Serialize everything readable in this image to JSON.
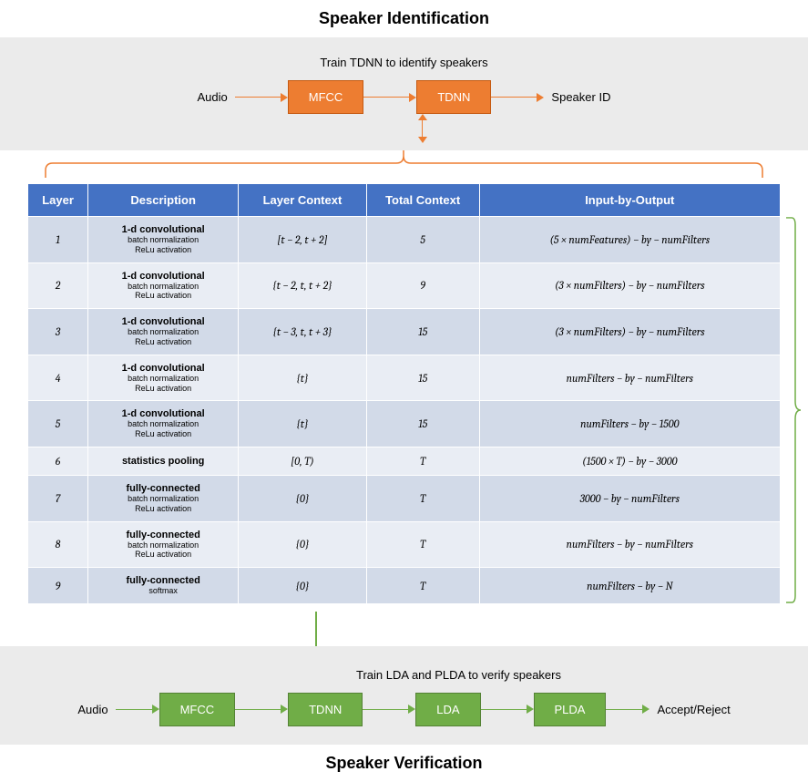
{
  "identification": {
    "title": "Speaker Identification",
    "subtitle": "Train TDNN to identify speakers",
    "input": "Audio",
    "output": "Speaker ID",
    "blocks": [
      "MFCC",
      "TDNN"
    ],
    "block_bg": "#ed7d31",
    "block_border": "#c55a11",
    "arrow_color": "#ed7d31"
  },
  "table": {
    "header_bg": "#4472c4",
    "row_odd_bg": "#d2dae8",
    "row_even_bg": "#e9edf4",
    "columns": [
      "Layer",
      "Description",
      "Layer Context",
      "Total Context",
      "Input-by-Output"
    ],
    "rows": [
      {
        "layer": "1",
        "desc_main": "1-d convolutional",
        "desc_sub": "batch normalization\nReLu activation",
        "ctx": "[t − 2, t + 2]",
        "total": "5",
        "io": "(5 × numFeatures) − by − numFilters"
      },
      {
        "layer": "2",
        "desc_main": "1-d convolutional",
        "desc_sub": "batch normalization\nReLu activation",
        "ctx": "{t − 2, t, t + 2}",
        "total": "9",
        "io": "(3 × numFilters) − by − numFilters"
      },
      {
        "layer": "3",
        "desc_main": "1-d convolutional",
        "desc_sub": "batch normalization\nReLu activation",
        "ctx": "{t − 3, t, t + 3}",
        "total": "15",
        "io": "(3 × numFilters) − by − numFilters"
      },
      {
        "layer": "4",
        "desc_main": "1-d convolutional",
        "desc_sub": "batch normalization\nReLu activation",
        "ctx": "{t}",
        "total": "15",
        "io": "numFilters − by − numFilters"
      },
      {
        "layer": "5",
        "desc_main": "1-d convolutional",
        "desc_sub": "batch normalization\nReLu activation",
        "ctx": "{t}",
        "total": "15",
        "io": "numFilters − by − 1500"
      },
      {
        "layer": "6",
        "desc_main": "statistics pooling",
        "desc_sub": "",
        "ctx": "[0, T)",
        "total": "T",
        "io": "(1500 × T) − by − 3000"
      },
      {
        "layer": "7",
        "desc_main": "fully-connected",
        "desc_sub": "batch normalization\nReLu activation",
        "ctx": "{0}",
        "total": "T",
        "io": "3000 − by − numFilters"
      },
      {
        "layer": "8",
        "desc_main": "fully-connected",
        "desc_sub": "batch normalization\nReLu activation",
        "ctx": "{0}",
        "total": "T",
        "io": "numFilters − by − numFilters"
      },
      {
        "layer": "9",
        "desc_main": "fully-connected",
        "desc_sub": "softmax",
        "ctx": "{0}",
        "total": "T",
        "io": "numFilters − by − N"
      }
    ],
    "bracket_color": "#70ad47"
  },
  "verification": {
    "title": "Speaker Verification",
    "subtitle": "Train LDA and PLDA to verify speakers",
    "input": "Audio",
    "output": "Accept/Reject",
    "blocks": [
      "MFCC",
      "TDNN",
      "LDA",
      "PLDA"
    ],
    "block_bg": "#70ad47",
    "block_border": "#548235",
    "arrow_color": "#70ad47"
  },
  "panel_bg": "#ebebeb"
}
